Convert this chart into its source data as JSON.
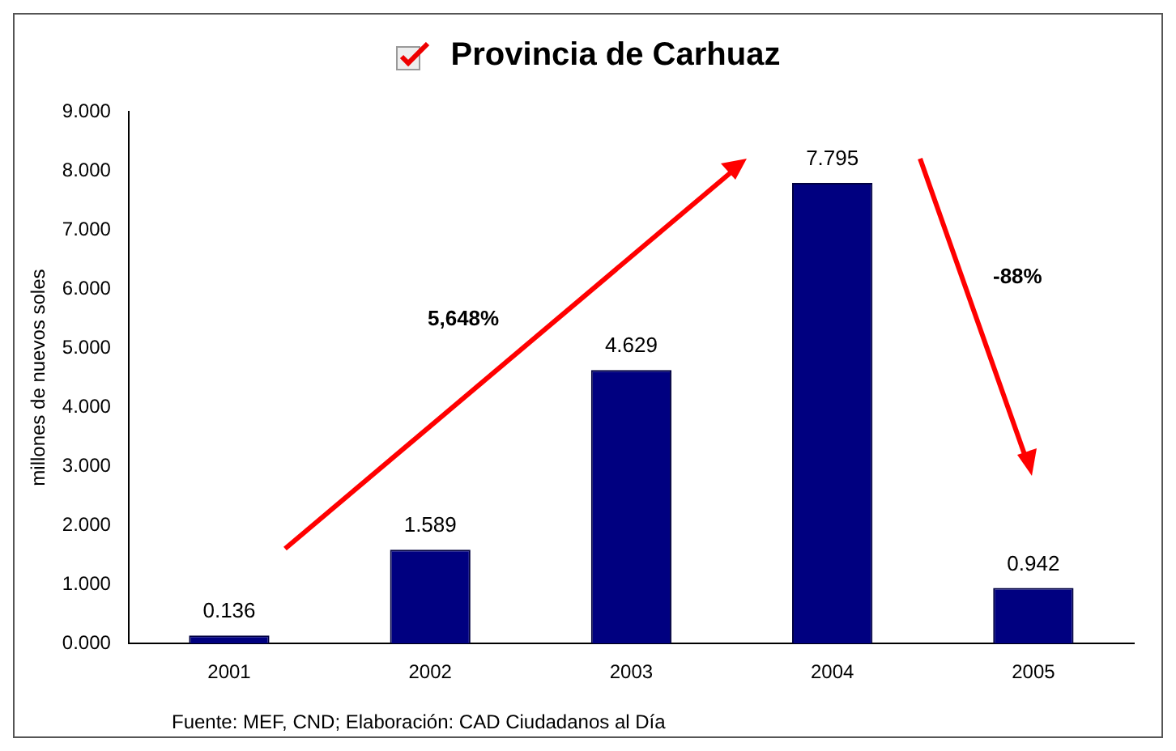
{
  "chart_data": {
    "type": "bar",
    "title": "Provincia de Carhuaz",
    "ylabel": "millones de nuevos soles",
    "categories": [
      "2001",
      "2002",
      "2003",
      "2004",
      "2005"
    ],
    "values": [
      0.136,
      1.589,
      4.629,
      7.795,
      0.942
    ],
    "color": "#000080",
    "ylim": [
      0,
      9
    ],
    "yticks": [
      {
        "value": 0,
        "label": "0.000"
      },
      {
        "value": 1,
        "label": "1.000"
      },
      {
        "value": 2,
        "label": "2.000"
      },
      {
        "value": 3,
        "label": "3.000"
      },
      {
        "value": 4,
        "label": "4.000"
      },
      {
        "value": 5,
        "label": "5.000"
      },
      {
        "value": 6,
        "label": "6.000"
      },
      {
        "value": 7,
        "label": "7.000"
      },
      {
        "value": 8,
        "label": "8.000"
      },
      {
        "value": 9,
        "label": "9.000"
      }
    ],
    "data_labels": true,
    "grid": false,
    "legend": false,
    "annotations": [
      "5,648%",
      "-88%",
      "Fuente: MEF, CND; Elaboración: CAD Ciudadanos al Día"
    ]
  }
}
